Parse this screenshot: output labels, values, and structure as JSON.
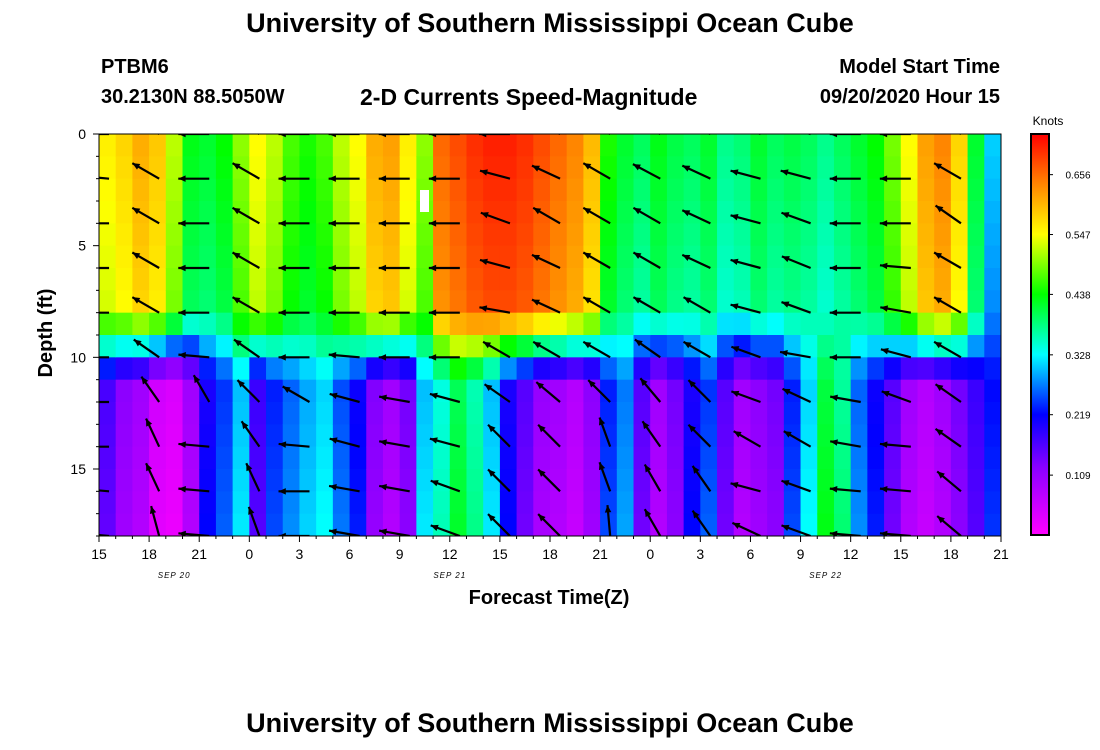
{
  "header": {
    "title": "University of Southern Mississippi Ocean Cube",
    "station": "PTBM6",
    "coords": "30.2130N 88.5050W",
    "subtitle": "2-D Currents Speed-Magnitude",
    "start_label": "Model Start Time",
    "start_value": "09/20/2020 Hour 15"
  },
  "footer": {
    "title": "University of Southern Mississippi Ocean Cube"
  },
  "chart_data": {
    "type": "heatmap",
    "title": "2-D Currents Speed-Magnitude",
    "xlabel": "Forecast Time(Z)",
    "ylabel": "Depth (ft)",
    "x_range_hours": [
      0,
      54
    ],
    "y_range_ft": [
      0,
      18
    ],
    "y_reversed": true,
    "x_ticks": [
      {
        "h": 0,
        "label": "15"
      },
      {
        "h": 3,
        "label": "18"
      },
      {
        "h": 6,
        "label": "21"
      },
      {
        "h": 9,
        "label": "0"
      },
      {
        "h": 12,
        "label": "3"
      },
      {
        "h": 15,
        "label": "6"
      },
      {
        "h": 18,
        "label": "9"
      },
      {
        "h": 21,
        "label": "12"
      },
      {
        "h": 24,
        "label": "15"
      },
      {
        "h": 27,
        "label": "18"
      },
      {
        "h": 30,
        "label": "21"
      },
      {
        "h": 33,
        "label": "0"
      },
      {
        "h": 36,
        "label": "3"
      },
      {
        "h": 39,
        "label": "6"
      },
      {
        "h": 42,
        "label": "9"
      },
      {
        "h": 45,
        "label": "12"
      },
      {
        "h": 48,
        "label": "15"
      },
      {
        "h": 51,
        "label": "18"
      },
      {
        "h": 54,
        "label": "21"
      }
    ],
    "date_labels": [
      {
        "h": 4.5,
        "label": "SEP 20"
      },
      {
        "h": 21,
        "label": "SEP 21"
      },
      {
        "h": 43.5,
        "label": "SEP 22"
      }
    ],
    "y_ticks": [
      0,
      5,
      10,
      15
    ],
    "colorbar": {
      "title": "Knots",
      "range": [
        0,
        0.73
      ],
      "ticks": [
        "0.109",
        "0.219",
        "0.328",
        "0.438",
        "0.547",
        "0.656"
      ]
    },
    "columns_hours": [
      0.5,
      1.5,
      2.5,
      3.5,
      4.5,
      5.5,
      6.5,
      7.5,
      8.5,
      9.5,
      10.5,
      11.5,
      12.5,
      13.5,
      14.5,
      15.5,
      16.5,
      17.5,
      18.5,
      19.5,
      20.5,
      21.5,
      22.5,
      23.5,
      24.5,
      25.5,
      26.5,
      27.5,
      28.5,
      29.5,
      30.5,
      31.5,
      32.5,
      33.5,
      34.5,
      35.5,
      36.5,
      37.5,
      38.5,
      39.5,
      40.5,
      41.5,
      42.5,
      43.5,
      44.5,
      45.5,
      46.5,
      47.5,
      48.5,
      49.5,
      50.5,
      51.5,
      52.5,
      53.5
    ],
    "surface_speed_knots": [
      0.56,
      0.58,
      0.61,
      0.59,
      0.52,
      0.43,
      0.42,
      0.44,
      0.5,
      0.55,
      0.52,
      0.47,
      0.45,
      0.47,
      0.52,
      0.55,
      0.61,
      0.62,
      0.56,
      0.5,
      0.66,
      0.68,
      0.7,
      0.71,
      0.71,
      0.7,
      0.68,
      0.66,
      0.64,
      0.6,
      0.45,
      0.42,
      0.4,
      0.43,
      0.41,
      0.4,
      0.42,
      0.38,
      0.39,
      0.42,
      0.4,
      0.41,
      0.4,
      0.38,
      0.4,
      0.42,
      0.44,
      0.49,
      0.55,
      0.62,
      0.64,
      0.58,
      0.42,
      0.31
    ],
    "bottom_speed_knots": [
      0.17,
      0.12,
      0.1,
      0.05,
      0.04,
      0.1,
      0.2,
      0.24,
      0.3,
      0.18,
      0.23,
      0.26,
      0.29,
      0.31,
      0.25,
      0.21,
      0.13,
      0.1,
      0.14,
      0.3,
      0.34,
      0.4,
      0.36,
      0.3,
      0.2,
      0.16,
      0.11,
      0.1,
      0.08,
      0.12,
      0.23,
      0.27,
      0.16,
      0.1,
      0.14,
      0.2,
      0.24,
      0.16,
      0.1,
      0.12,
      0.14,
      0.23,
      0.31,
      0.41,
      0.37,
      0.26,
      0.21,
      0.16,
      0.1,
      0.08,
      0.1,
      0.14,
      0.18,
      0.22
    ],
    "vector_times_hours": [
      1.5,
      4.5,
      7.5,
      10.5,
      13.5,
      16.5,
      19.5,
      22.5,
      25.5,
      28.5,
      31.5,
      34.5,
      37.5,
      40.5,
      43.5,
      46.5,
      49.5,
      52.5
    ],
    "vector_depths_ft": [
      0,
      2,
      4,
      6,
      8,
      10,
      12,
      14,
      16,
      18
    ],
    "vector_angles_deg": [
      [
        180,
        150,
        180,
        150,
        180,
        180,
        180,
        180,
        180,
        160,
        155,
        158,
        160,
        160,
        165,
        180,
        180,
        155
      ],
      [
        175,
        150,
        180,
        150,
        180,
        180,
        180,
        180,
        165,
        155,
        150,
        152,
        155,
        165,
        165,
        180,
        180,
        150
      ],
      [
        180,
        150,
        180,
        150,
        180,
        180,
        180,
        180,
        160,
        150,
        150,
        150,
        155,
        165,
        160,
        180,
        180,
        145
      ],
      [
        180,
        150,
        180,
        150,
        180,
        180,
        180,
        180,
        165,
        155,
        150,
        150,
        155,
        165,
        158,
        180,
        175,
        150
      ],
      [
        180,
        150,
        180,
        150,
        180,
        180,
        180,
        180,
        170,
        155,
        150,
        150,
        150,
        165,
        160,
        180,
        170,
        150
      ],
      [
        180,
        145,
        175,
        145,
        180,
        175,
        180,
        180,
        150,
        150,
        150,
        145,
        150,
        160,
        170,
        180,
        165,
        150
      ],
      [
        180,
        125,
        120,
        135,
        150,
        165,
        170,
        165,
        145,
        140,
        135,
        130,
        135,
        160,
        155,
        170,
        160,
        145
      ],
      [
        180,
        115,
        175,
        125,
        175,
        165,
        170,
        165,
        135,
        135,
        110,
        125,
        135,
        150,
        150,
        170,
        175,
        145
      ],
      [
        175,
        115,
        175,
        115,
        180,
        170,
        170,
        160,
        135,
        135,
        110,
        120,
        125,
        165,
        160,
        175,
        175,
        140
      ],
      [
        175,
        105,
        175,
        110,
        180,
        170,
        170,
        160,
        135,
        135,
        95,
        120,
        125,
        155,
        160,
        175,
        175,
        140
      ]
    ]
  }
}
